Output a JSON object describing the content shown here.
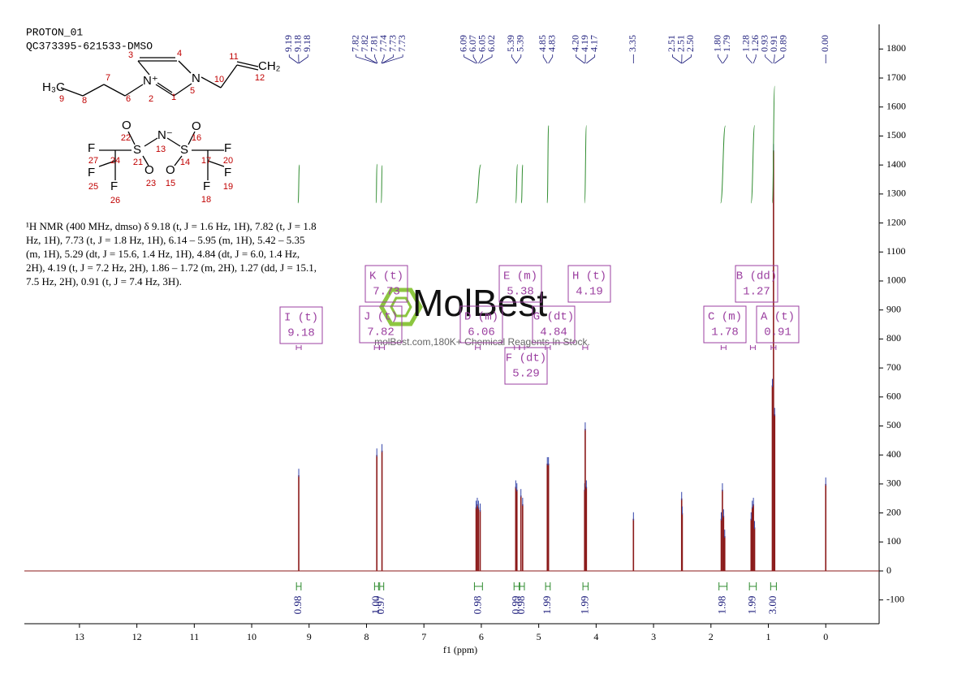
{
  "chart_data": {
    "type": "nmr",
    "header": [
      "PROTON_01",
      "QC373395-621533-DMSO"
    ],
    "xlabel": "f1 (ppm)",
    "xlim": [
      13.96,
      -0.93
    ],
    "xticks": [
      13,
      12,
      11,
      10,
      9,
      8,
      7,
      6,
      5,
      4,
      3,
      2,
      1,
      0
    ],
    "ylim": [
      -182,
      1885
    ],
    "yticks": [
      -100,
      0,
      100,
      200,
      300,
      400,
      500,
      600,
      700,
      800,
      900,
      1000,
      1100,
      1200,
      1300,
      1400,
      1500,
      1600,
      1700,
      1800
    ],
    "color": "#8b1a1a",
    "x": [
      9.18,
      7.82,
      7.73,
      6.09,
      6.07,
      6.05,
      6.02,
      5.4,
      5.38,
      5.31,
      5.28,
      4.85,
      4.83,
      4.2,
      4.19,
      4.17,
      3.35,
      2.51,
      2.5,
      1.82,
      1.8,
      1.78,
      1.76,
      1.3,
      1.28,
      1.26,
      1.24,
      0.93,
      0.91,
      0.89,
      0.0
    ],
    "values": [
      330,
      400,
      415,
      220,
      230,
      220,
      210,
      290,
      280,
      260,
      230,
      370,
      370,
      280,
      490,
      290,
      180,
      250,
      200,
      180,
      280,
      190,
      120,
      180,
      220,
      230,
      150,
      640,
      1450,
      540,
      300
    ],
    "peak_labels": [
      9.19,
      9.18,
      9.18,
      7.82,
      7.82,
      7.81,
      7.74,
      7.73,
      7.73,
      6.09,
      6.07,
      6.05,
      6.02,
      5.39,
      5.39,
      4.85,
      4.83,
      {
        "value": 4.2,
        "label": "4.20"
      },
      4.19,
      4.17,
      3.35,
      2.51,
      2.51,
      {
        "value": 2.5,
        "label": "2.50"
      },
      {
        "value": 1.8,
        "label": "1.80"
      },
      1.79,
      1.28,
      1.26,
      0.93,
      0.91,
      0.89,
      {
        "value": 0,
        "label": "0.00"
      }
    ],
    "integral_ranges": [
      [
        9.22,
        9.14
      ],
      [
        7.86,
        7.79
      ],
      [
        7.77,
        7.7
      ],
      [
        6.12,
        5.98
      ],
      [
        5.43,
        5.34
      ],
      [
        5.33,
        5.25
      ],
      [
        4.88,
        4.8
      ],
      [
        4.23,
        4.14
      ],
      [
        1.86,
        1.72
      ],
      [
        1.33,
        1.21
      ],
      [
        0.96,
        0.86
      ]
    ],
    "integral_values": [
      0.98,
      {
        "value": 1,
        "label": "1.00"
      },
      0.97,
      0.98,
      0.99,
      0.98,
      1.99,
      1.99,
      1.98,
      1.99,
      {
        "value": 3,
        "label": "3.00"
      }
    ],
    "integral_color": "#2e8b2e",
    "multiplets": [
      {
        "name": "I (t)",
        "shift": 9.18
      },
      {
        "name": "K (t)",
        "shift": 7.73
      },
      {
        "name": "J (t)",
        "shift": 7.82
      },
      {
        "name": "D (m)",
        "shift": 6.06
      },
      {
        "name": "E (m)",
        "shift": 5.38
      },
      {
        "name": "G (dt)",
        "shift": 4.84
      },
      {
        "name": "F (dt)",
        "shift": 5.29
      },
      {
        "name": "H (t)",
        "shift": 4.19
      },
      {
        "name": "B (dd)",
        "shift": 1.27
      },
      {
        "name": "C (m)",
        "shift": 1.78
      },
      {
        "name": "A (t)",
        "shift": 0.91
      }
    ],
    "nmr_text": "¹H NMR (400 MHz, dmso) δ 9.18 (t, J = 1.6 Hz, 1H), 7.82 (t, J = 1.8 Hz, 1H), 7.73 (t, J = 1.8 Hz, 1H), 6.14 – 5.95 (m, 1H), 5.42 – 5.35 (m, 1H), 5.29 (dt, J = 15.6, 1.4 Hz, 1H), 4.84 (dt, J = 6.0, 1.4 Hz, 2H), 4.19 (t, J = 7.2 Hz, 2H), 1.86 – 1.72 (m, 2H), 1.27 (dd, J = 15.1, 7.5 Hz, 2H), 0.91 (t, J = 7.4 Hz, 3H).",
    "watermark": [
      "MolBest",
      "molBest.com,180K+ Chemical Reagents In Stock."
    ],
    "structure": {
      "atoms": [
        "H₃C",
        "N⁺",
        "N",
        "CH₂",
        "O",
        "S",
        "N⁻",
        "S",
        "O",
        "O",
        "O",
        "F",
        "F",
        "F",
        "F",
        "F",
        "F"
      ],
      "locants": [
        "1",
        "2",
        "3",
        "4",
        "5",
        "6",
        "7",
        "8",
        "9",
        "10",
        "11",
        "12",
        "13",
        "14",
        "15",
        "16",
        "17",
        "18",
        "19",
        "20",
        "21",
        "22",
        "23",
        "24",
        "25",
        "26",
        "27"
      ]
    }
  }
}
